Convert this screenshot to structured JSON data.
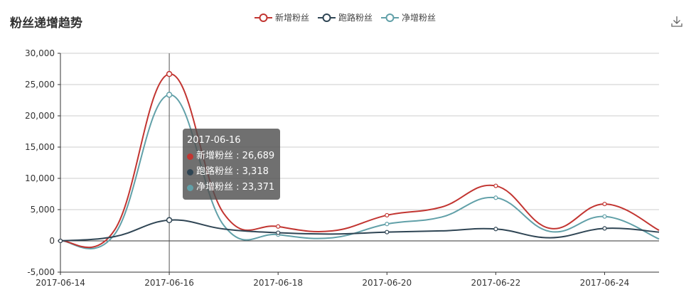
{
  "title": "粉丝递增趋势",
  "chart_data": {
    "type": "line",
    "x": [
      "2017-06-14",
      "2017-06-15",
      "2017-06-16",
      "2017-06-17",
      "2017-06-18",
      "2017-06-19",
      "2017-06-20",
      "2017-06-21",
      "2017-06-22",
      "2017-06-23",
      "2017-06-24",
      "2017-06-25"
    ],
    "x_tick_labels": [
      "2017-06-14",
      "2017-06-16",
      "2017-06-18",
      "2017-06-20",
      "2017-06-22",
      "2017-06-24"
    ],
    "ylim": [
      -5000,
      30000
    ],
    "y_tick_labels": [
      "-5,000",
      "0",
      "5,000",
      "10,000",
      "15,000",
      "20,000",
      "25,000",
      "30,000"
    ],
    "y_ticks": [
      -5000,
      0,
      5000,
      10000,
      15000,
      20000,
      25000,
      30000
    ],
    "grid": true,
    "legend_position": "top-center",
    "smooth": true,
    "series": [
      {
        "name": "新增粉丝",
        "color": "#c23531",
        "values": [
          0,
          1800,
          26689,
          4400,
          2300,
          1600,
          4100,
          5400,
          8800,
          2000,
          5900,
          1700
        ]
      },
      {
        "name": "跑路粉丝",
        "color": "#2f4554",
        "values": [
          0,
          700,
          3318,
          1900,
          1300,
          1100,
          1400,
          1600,
          1900,
          500,
          2000,
          1400
        ]
      },
      {
        "name": "净增粉丝",
        "color": "#61a0a8",
        "values": [
          0,
          1100,
          23371,
          2500,
          1000,
          500,
          2700,
          3800,
          6900,
          1500,
          3900,
          300
        ]
      }
    ]
  },
  "tooltip": {
    "date": "2017-06-16",
    "rows": [
      {
        "label": "新增粉丝 : 26,689",
        "color": "#c23531"
      },
      {
        "label": "跑路粉丝 : 3,318",
        "color": "#2f4554"
      },
      {
        "label": "净增粉丝 : 23,371",
        "color": "#61a0a8"
      }
    ]
  },
  "toolbox": {
    "icon": "download-icon"
  }
}
